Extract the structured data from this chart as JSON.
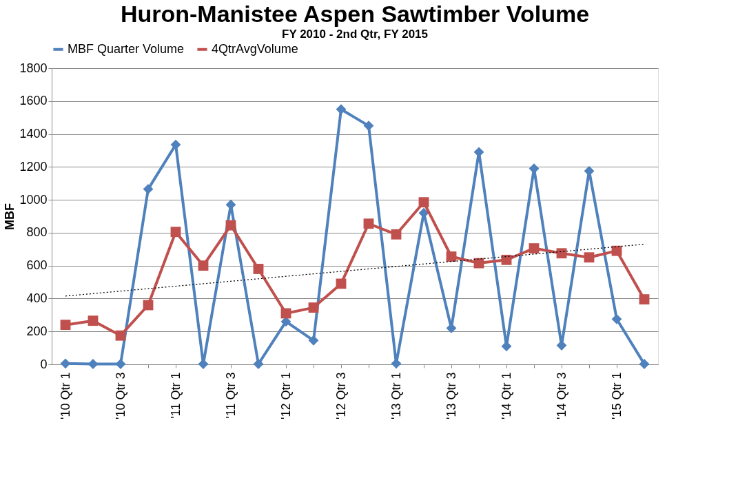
{
  "chart_data": {
    "type": "line",
    "title": "Huron-Manistee Aspen Sawtimber Volume",
    "subtitle": "FY 2010 - 2nd Qtr, FY 2015",
    "ylabel": "MBF",
    "categories": [
      "'10 Qtr 1",
      null,
      "'10 Qtr 3",
      null,
      "'11 Qtr 1",
      null,
      "'11 Qtr 3",
      null,
      "'12 Qtr 1",
      null,
      "'12 Qtr 3",
      null,
      "'13 Qtr 1",
      null,
      "'13 Qtr 3",
      null,
      "'14 Qtr 1",
      null,
      "'14 Qtr 3",
      null,
      "'15 Qtr 1",
      null
    ],
    "series": [
      {
        "name": "MBF Quarter Volume",
        "color": "#4f81bd",
        "marker": "diamond",
        "values": [
          5,
          2,
          2,
          1065,
          1335,
          2,
          970,
          2,
          260,
          145,
          1550,
          1450,
          5,
          920,
          220,
          1290,
          110,
          1190,
          115,
          1175,
          275,
          2
        ]
      },
      {
        "name": "4QtrAvgVolume",
        "color": "#c0504d",
        "marker": "square",
        "values": [
          240,
          265,
          175,
          360,
          805,
          600,
          845,
          580,
          310,
          345,
          490,
          855,
          790,
          985,
          655,
          615,
          635,
          705,
          675,
          650,
          690,
          395
        ]
      },
      {
        "color": "#000000",
        "marker": "none",
        "line_style": "dotted",
        "values": [
          415,
          430,
          445,
          460,
          475,
          490,
          505,
          520,
          535,
          550,
          565,
          580,
          595,
          610,
          625,
          640,
          655,
          670,
          685,
          700,
          715,
          730
        ]
      }
    ],
    "ylim": [
      0,
      1800
    ],
    "yticks": [
      0,
      200,
      400,
      600,
      800,
      1000,
      1200,
      1400,
      1600,
      1800
    ],
    "grid": "y",
    "legend": "top"
  }
}
